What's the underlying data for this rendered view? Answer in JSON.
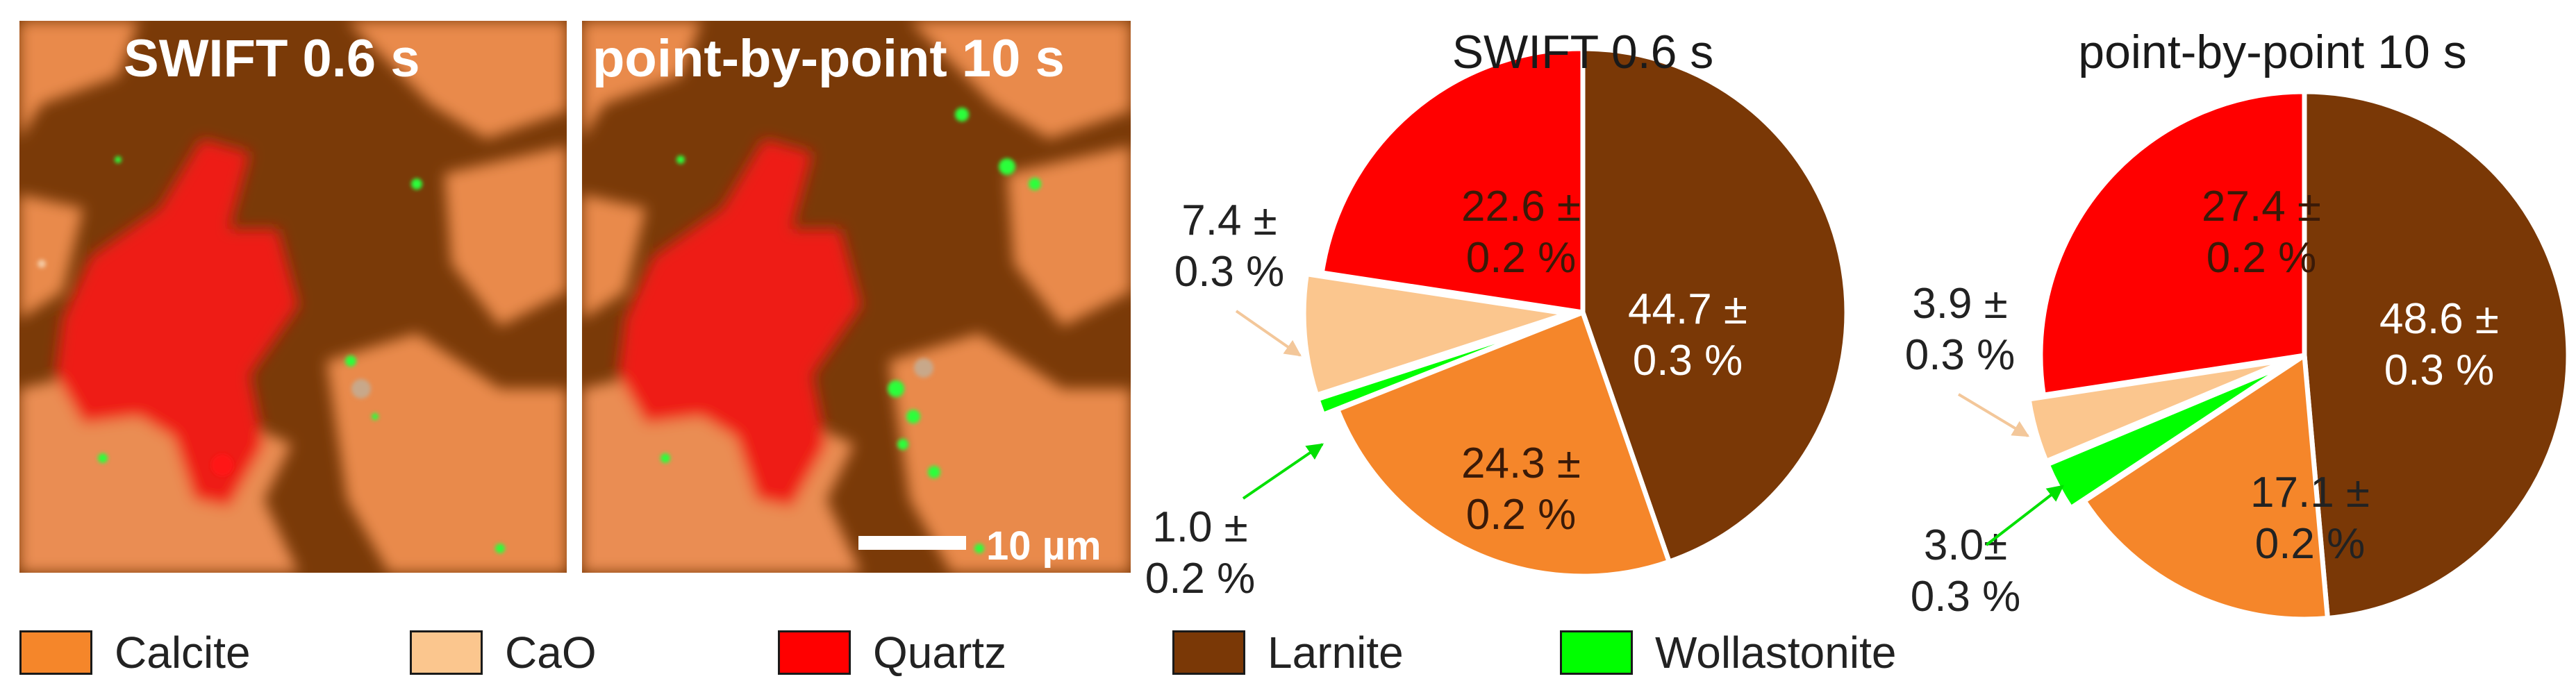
{
  "colors": {
    "Calcite": "#f5862a",
    "CaO": "#fbc68e",
    "Quartz": "#ff0000",
    "Larnite": "#7a3806",
    "Wollastonite": "#00ff00"
  },
  "maps": [
    {
      "title": "SWIFT 0.6 s"
    },
    {
      "title": "point-by-point 10 s",
      "scalebar": "10 µm"
    }
  ],
  "legend": [
    "Calcite",
    "CaO",
    "Quartz",
    "Larnite",
    "Wollastonite"
  ],
  "chart_data": [
    {
      "type": "pie",
      "title": "SWIFT 0.6 s",
      "slices": [
        {
          "label": "Larnite",
          "value": 44.7,
          "text": [
            "44.7 ±",
            "0.3 %"
          ]
        },
        {
          "label": "Calcite",
          "value": 24.3,
          "text": [
            "24.3 ±",
            "0.2 %"
          ]
        },
        {
          "label": "Wollastonite",
          "value": 1.0,
          "text": [
            "1.0 ±",
            "0.2 %"
          ]
        },
        {
          "label": "CaO",
          "value": 7.4,
          "text": [
            "7.4 ±",
            "0.3 %"
          ]
        },
        {
          "label": "Quartz",
          "value": 22.6,
          "text": [
            "22.6 ±",
            "0.2 %"
          ]
        }
      ]
    },
    {
      "type": "pie",
      "title": "point-by-point 10 s",
      "slices": [
        {
          "label": "Larnite",
          "value": 48.6,
          "text": [
            "48.6 ±",
            "0.3 %"
          ]
        },
        {
          "label": "Calcite",
          "value": 17.1,
          "text": [
            "17.1 ±",
            "0.2 %"
          ]
        },
        {
          "label": "Wollastonite",
          "value": 3.0,
          "text": [
            "3.0±",
            "0.3 %"
          ]
        },
        {
          "label": "CaO",
          "value": 3.9,
          "text": [
            "3.9 ±",
            "0.3 %"
          ]
        },
        {
          "label": "Quartz",
          "value": 27.4,
          "text": [
            "27.4 ±",
            "0.2 %"
          ]
        }
      ]
    }
  ]
}
